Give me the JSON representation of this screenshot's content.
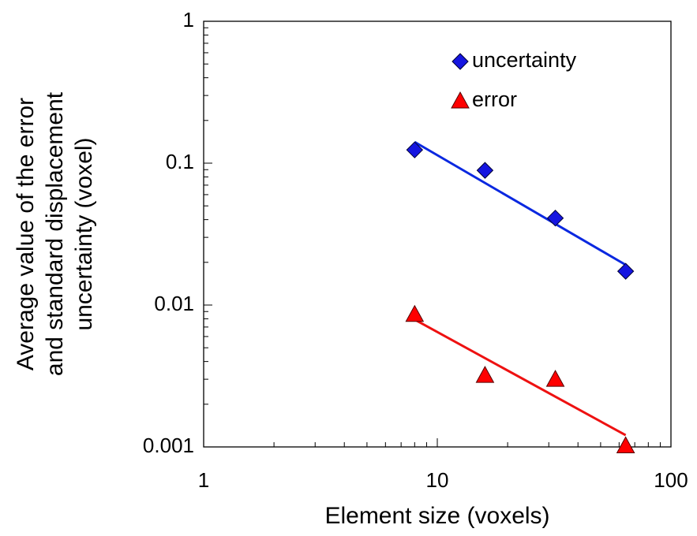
{
  "chart_data": {
    "type": "scatter",
    "xlabel": "Element size (voxels)",
    "ylabel": [
      "Average value of the error",
      "and standard displacement",
      "uncertainty (voxel)"
    ],
    "x_scale": "log",
    "y_scale": "log",
    "xlim": [
      1,
      100
    ],
    "ylim": [
      0.001,
      1
    ],
    "xticks": [
      1,
      10,
      100
    ],
    "yticks": [
      0.001,
      0.01,
      0.1,
      1
    ],
    "legend": "upper right",
    "series": [
      {
        "name": "uncertainty",
        "color": "#1515e0",
        "marker": "diamond",
        "x": [
          8,
          16,
          32,
          64
        ],
        "values": [
          0.124,
          0.089,
          0.041,
          0.0173
        ]
      },
      {
        "name": "error",
        "color": "#ff0000",
        "marker": "triangle",
        "x": [
          8,
          16,
          32,
          64
        ],
        "values": [
          0.0086,
          0.0032,
          0.003,
          0.00102
        ]
      }
    ],
    "fit_lines": [
      {
        "color": "#0a28e0",
        "x": [
          8,
          64
        ],
        "values": [
          0.141,
          0.0192
        ]
      },
      {
        "color": "#ee1111",
        "x": [
          8,
          64
        ],
        "values": [
          0.0079,
          0.00121
        ]
      }
    ]
  }
}
